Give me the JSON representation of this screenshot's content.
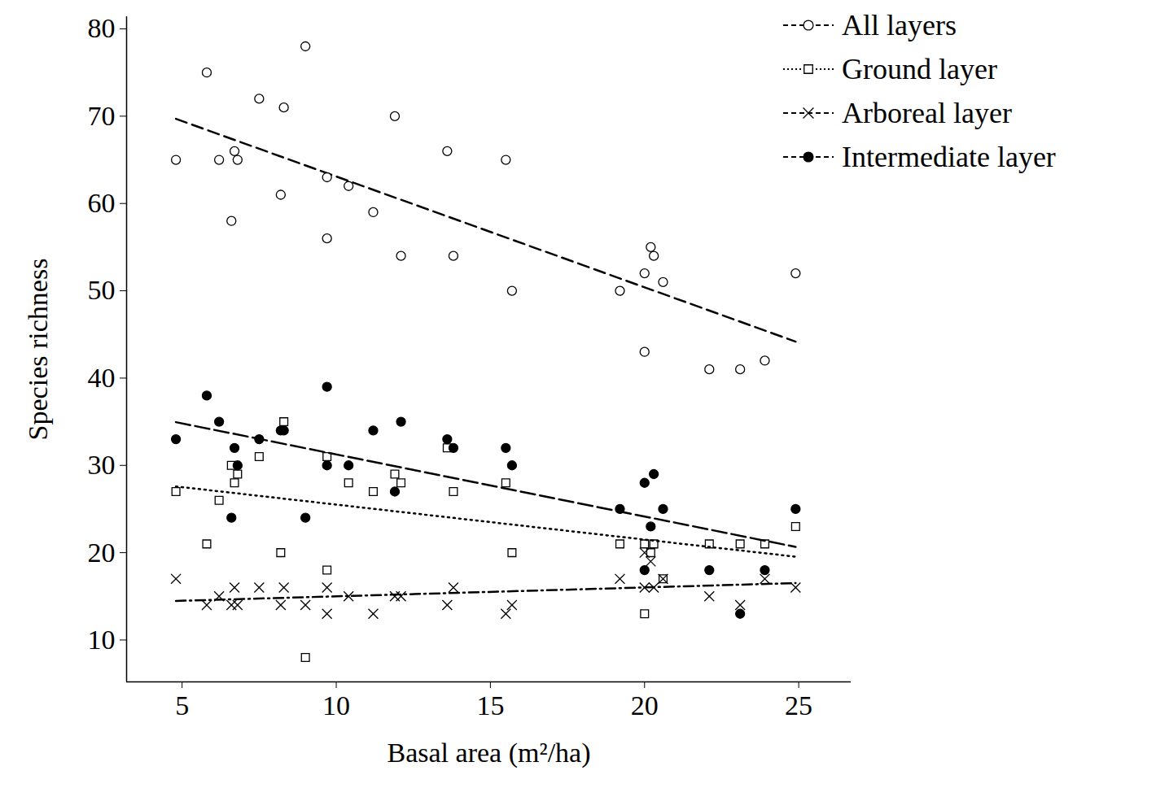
{
  "chart_data": {
    "type": "scatter",
    "xlabel": "Basal area (m²/ha)",
    "ylabel": "Species richness",
    "xlim": [
      3.2,
      26.7
    ],
    "ylim": [
      5.2,
      81.4
    ],
    "xticks": [
      5,
      10,
      15,
      20,
      25
    ],
    "yticks": [
      10,
      20,
      30,
      40,
      50,
      60,
      70,
      80
    ],
    "grid": false,
    "legend": "top-right",
    "series": [
      {
        "name": "All layers",
        "color": "#000000",
        "marker": "open_circle",
        "line_style": "dashed",
        "x": [
          4.8,
          5.8,
          6.2,
          6.6,
          6.7,
          6.8,
          7.5,
          8.2,
          8.3,
          9.0,
          9.7,
          9.7,
          10.4,
          11.2,
          11.9,
          12.1,
          13.6,
          13.8,
          15.5,
          15.7,
          19.2,
          20.0,
          20.0,
          20.2,
          20.3,
          20.6,
          22.1,
          23.1,
          23.9,
          24.9
        ],
        "values": [
          65,
          75,
          65,
          58,
          66,
          65,
          72,
          61,
          71,
          78,
          56,
          63,
          62,
          59,
          70,
          54,
          66,
          54,
          65,
          50,
          50,
          52,
          43,
          55,
          54,
          51,
          41,
          41,
          42,
          52
        ]
      },
      {
        "name": "Ground layer",
        "color": "#000000",
        "marker": "open_square",
        "line_style": "dotted",
        "x": [
          4.8,
          5.8,
          6.2,
          6.6,
          6.7,
          6.8,
          7.5,
          8.2,
          8.3,
          9.0,
          9.7,
          9.7,
          10.4,
          11.2,
          11.9,
          12.1,
          13.6,
          13.8,
          15.5,
          15.7,
          19.2,
          20.0,
          20.0,
          20.2,
          20.3,
          20.6,
          22.1,
          23.1,
          23.9,
          24.9
        ],
        "values": [
          27,
          21,
          26,
          30,
          28,
          29,
          31,
          20,
          35,
          8,
          31,
          18,
          28,
          27,
          29,
          28,
          32,
          27,
          28,
          20,
          21,
          13,
          21,
          20,
          21,
          17,
          21,
          21,
          21,
          23
        ]
      },
      {
        "name": "Arboreal layer",
        "color": "#000000",
        "marker": "x",
        "line_style": "dashdot",
        "x": [
          4.8,
          5.8,
          6.2,
          6.6,
          6.7,
          6.8,
          7.5,
          8.2,
          8.3,
          9.0,
          9.7,
          9.7,
          10.4,
          11.2,
          11.9,
          12.1,
          13.6,
          13.8,
          15.5,
          15.7,
          19.2,
          20.0,
          20.0,
          20.2,
          20.3,
          20.6,
          22.1,
          23.1,
          23.9,
          24.9
        ],
        "values": [
          17,
          14,
          15,
          14,
          16,
          14,
          16,
          14,
          16,
          14,
          16,
          13,
          15,
          13,
          15,
          15,
          14,
          16,
          13,
          14,
          17,
          16,
          20,
          19,
          16,
          17,
          15,
          14,
          17,
          16
        ]
      },
      {
        "name": "Intermediate layer",
        "color": "#000000",
        "marker": "filled_circle",
        "line_style": "longdash",
        "x": [
          4.8,
          5.8,
          6.2,
          6.6,
          6.7,
          6.8,
          7.5,
          8.2,
          8.3,
          9.0,
          9.7,
          9.7,
          10.4,
          11.2,
          11.9,
          12.1,
          13.6,
          13.8,
          15.5,
          15.7,
          19.2,
          20.0,
          20.0,
          20.2,
          20.3,
          20.6,
          22.1,
          23.1,
          23.9,
          24.9
        ],
        "values": [
          33,
          38,
          35,
          24,
          32,
          30,
          33,
          34,
          34,
          24,
          39,
          30,
          30,
          34,
          27,
          35,
          33,
          32,
          32,
          30,
          25,
          28,
          18,
          23,
          29,
          25,
          18,
          13,
          18,
          25
        ]
      }
    ]
  }
}
